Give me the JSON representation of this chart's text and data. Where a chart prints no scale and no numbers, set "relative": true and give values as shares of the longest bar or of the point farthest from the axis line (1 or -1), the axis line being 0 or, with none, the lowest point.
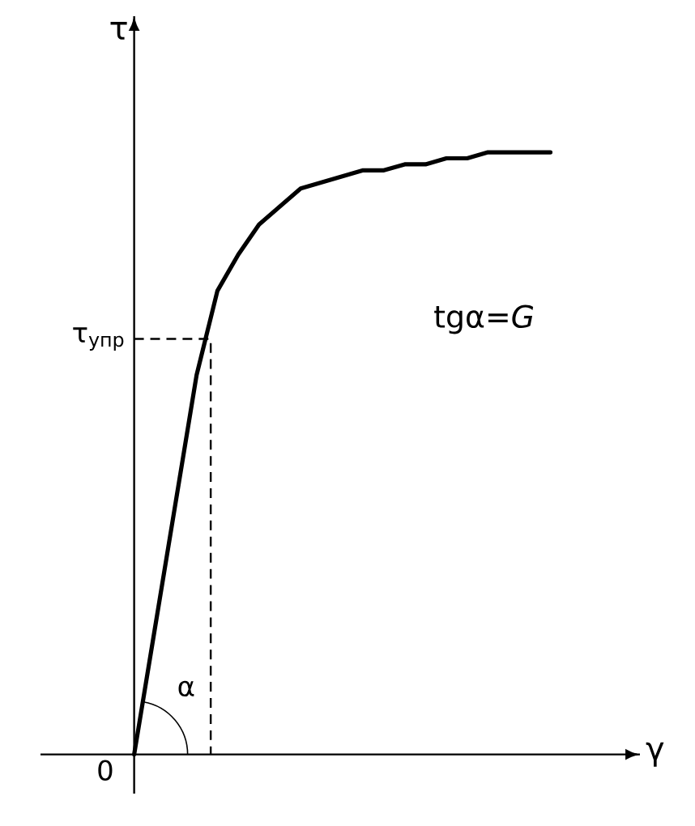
{
  "chart_data": {
    "type": "line",
    "relative": true,
    "xlabel": "γ",
    "ylabel": "τ",
    "categories": [
      null,
      null,
      null,
      null,
      null,
      null,
      null,
      null,
      null,
      null,
      null,
      null,
      null,
      null,
      null,
      null,
      null,
      null,
      null,
      null,
      null
    ],
    "series": [
      {
        "color": "#000000",
        "values": [
          0,
          0.21,
          0.42,
          0.63,
          0.77,
          0.83,
          0.88,
          0.91,
          0.94,
          0.95,
          0.96,
          0.97,
          0.97,
          0.98,
          0.98,
          0.99,
          0.99,
          1.0,
          1.0,
          1.0,
          1.0
        ]
      }
    ],
    "ref_lines": [
      {
        "axis": "y",
        "value": 0.69,
        "label": "τ$_{упр}$",
        "line_style": "dashed",
        "color": "#000000"
      }
    ],
    "annotations": [
      "α",
      "0",
      "tgα=*G*"
    ]
  }
}
